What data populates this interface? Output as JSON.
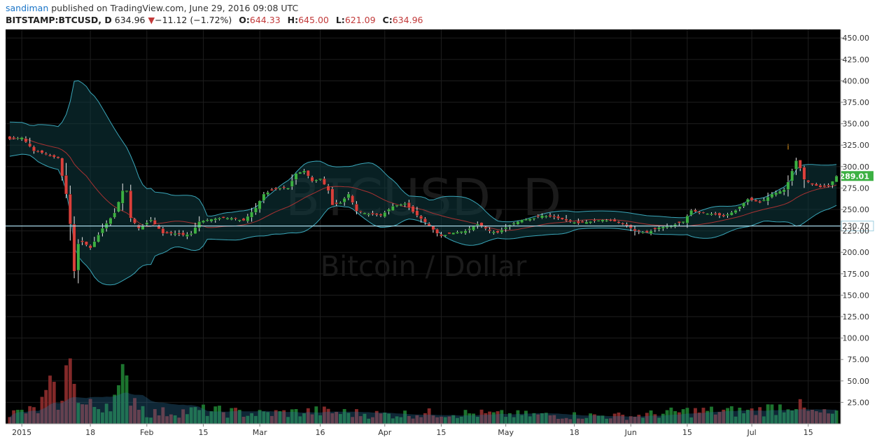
{
  "header": {
    "user": "sandiman",
    "published": "published on TradingView.com, June 29, 2016 09:08 UTC",
    "symbol": "BITSTAMP:BTCUSD, D",
    "last": "634.96",
    "change_arrow": "▼",
    "change": "−11.12 (−1.72%)",
    "o_label": "O:",
    "o_value": "644.33",
    "h_label": "H:",
    "h_value": "645.00",
    "l_label": "L:",
    "l_value": "621.09",
    "c_label": "C:",
    "c_value": "634.96"
  },
  "watermark": {
    "symbol": "BTCUSD, D",
    "name": "Bitcoin / Dollar"
  },
  "colors": {
    "bg": "#000000",
    "up": "#3cb043",
    "down": "#d9403b",
    "band": "#3aa6b9",
    "ma": "#a83232",
    "hline": "#a8d8e8",
    "last_label": "#3cb043",
    "hline_label": "#9fcfdf"
  },
  "chart_data": {
    "type": "candlestick",
    "price_axis": {
      "min": 0,
      "max": 460,
      "ticks": [
        450,
        425,
        400,
        375,
        350,
        325,
        300,
        275,
        250,
        225,
        200,
        175,
        150,
        125,
        100,
        75,
        50,
        25
      ],
      "tick_labels": [
        "450.00",
        "425.00",
        "400.00",
        "375.00",
        "350.00",
        "325.00",
        "300.00",
        "275.00",
        "250.00",
        "225.00",
        "200.00",
        "175.00",
        "150.00",
        "125.00",
        "100.00",
        "75.00",
        "50.00",
        "25.00"
      ]
    },
    "time_axis": {
      "start": "2014-12-29",
      "end": "2015-07-22",
      "labels": [
        {
          "date": "2015-01-01",
          "text": "2015"
        },
        {
          "date": "2015-01-18",
          "text": "18"
        },
        {
          "date": "2015-02-01",
          "text": "Feb"
        },
        {
          "date": "2015-02-15",
          "text": "15"
        },
        {
          "date": "2015-03-01",
          "text": "Mar"
        },
        {
          "date": "2015-03-16",
          "text": "16"
        },
        {
          "date": "2015-04-01",
          "text": "Apr"
        },
        {
          "date": "2015-04-15",
          "text": "15"
        },
        {
          "date": "2015-05-01",
          "text": "May"
        },
        {
          "date": "2015-05-18",
          "text": "18"
        },
        {
          "date": "2015-06-01",
          "text": "Jun"
        },
        {
          "date": "2015-06-15",
          "text": "15"
        },
        {
          "date": "2015-07-01",
          "text": "Jul"
        },
        {
          "date": "2015-07-15",
          "text": "15"
        }
      ]
    },
    "close_anchors": [
      [
        "2014-12-29",
        332
      ],
      [
        "2015-01-01",
        334
      ],
      [
        "2015-01-04",
        318
      ],
      [
        "2015-01-06",
        316
      ],
      [
        "2015-01-08",
        312
      ],
      [
        "2015-01-10",
        310
      ],
      [
        "2015-01-12",
        268
      ],
      [
        "2015-01-13",
        233
      ],
      [
        "2015-01-14",
        178
      ],
      [
        "2015-01-15",
        210
      ],
      [
        "2015-01-16",
        212
      ],
      [
        "2015-01-18",
        205
      ],
      [
        "2015-01-21",
        228
      ],
      [
        "2015-01-24",
        246
      ],
      [
        "2015-01-26",
        272
      ],
      [
        "2015-01-27",
        272
      ],
      [
        "2015-01-28",
        240
      ],
      [
        "2015-01-30",
        228
      ],
      [
        "2015-02-02",
        238
      ],
      [
        "2015-02-05",
        222
      ],
      [
        "2015-02-08",
        222
      ],
      [
        "2015-02-10",
        220
      ],
      [
        "2015-02-12",
        222
      ],
      [
        "2015-02-14",
        236
      ],
      [
        "2015-02-16",
        238
      ],
      [
        "2015-02-19",
        240
      ],
      [
        "2015-02-22",
        240
      ],
      [
        "2015-02-25",
        237
      ],
      [
        "2015-02-28",
        252
      ],
      [
        "2015-03-02",
        268
      ],
      [
        "2015-03-04",
        272
      ],
      [
        "2015-03-06",
        275
      ],
      [
        "2015-03-08",
        275
      ],
      [
        "2015-03-10",
        292
      ],
      [
        "2015-03-12",
        295
      ],
      [
        "2015-03-14",
        283
      ],
      [
        "2015-03-16",
        286
      ],
      [
        "2015-03-18",
        272
      ],
      [
        "2015-03-19",
        255
      ],
      [
        "2015-03-21",
        258
      ],
      [
        "2015-03-23",
        268
      ],
      [
        "2015-03-25",
        248
      ],
      [
        "2015-03-28",
        245
      ],
      [
        "2015-03-31",
        243
      ],
      [
        "2015-04-03",
        254
      ],
      [
        "2015-04-06",
        257
      ],
      [
        "2015-04-08",
        247
      ],
      [
        "2015-04-11",
        235
      ],
      [
        "2015-04-14",
        222
      ],
      [
        "2015-04-15",
        219
      ],
      [
        "2015-04-18",
        223
      ],
      [
        "2015-04-21",
        225
      ],
      [
        "2015-04-24",
        233
      ],
      [
        "2015-04-27",
        225
      ],
      [
        "2015-04-29",
        223
      ],
      [
        "2015-05-02",
        232
      ],
      [
        "2015-05-05",
        238
      ],
      [
        "2015-05-08",
        240
      ],
      [
        "2015-05-10",
        243
      ],
      [
        "2015-05-13",
        241
      ],
      [
        "2015-05-16",
        237
      ],
      [
        "2015-05-19",
        234
      ],
      [
        "2015-05-22",
        236
      ],
      [
        "2015-05-25",
        238
      ],
      [
        "2015-05-28",
        236
      ],
      [
        "2015-05-31",
        231
      ],
      [
        "2015-06-02",
        225
      ],
      [
        "2015-06-05",
        223
      ],
      [
        "2015-06-08",
        229
      ],
      [
        "2015-06-11",
        231
      ],
      [
        "2015-06-14",
        236
      ],
      [
        "2015-06-16",
        249
      ],
      [
        "2015-06-18",
        246
      ],
      [
        "2015-06-21",
        245
      ],
      [
        "2015-06-24",
        242
      ],
      [
        "2015-06-27",
        249
      ],
      [
        "2015-06-30",
        262
      ],
      [
        "2015-07-03",
        258
      ],
      [
        "2015-07-06",
        268
      ],
      [
        "2015-07-09",
        273
      ],
      [
        "2015-07-10",
        282
      ],
      [
        "2015-07-11",
        295
      ],
      [
        "2015-07-12",
        307
      ],
      [
        "2015-07-13",
        298
      ],
      [
        "2015-07-14",
        285
      ],
      [
        "2015-07-16",
        279
      ],
      [
        "2015-07-18",
        276
      ],
      [
        "2015-07-20",
        277
      ],
      [
        "2015-07-22",
        289.01
      ]
    ],
    "volume_anchors": [
      [
        "2014-12-29",
        13
      ],
      [
        "2015-01-05",
        18
      ],
      [
        "2015-01-08",
        44
      ],
      [
        "2015-01-11",
        24
      ],
      [
        "2015-01-12",
        61
      ],
      [
        "2015-01-13",
        118
      ],
      [
        "2015-01-14",
        80
      ],
      [
        "2015-01-15",
        25
      ],
      [
        "2015-01-20",
        22
      ],
      [
        "2015-01-25",
        38
      ],
      [
        "2015-01-26",
        55
      ],
      [
        "2015-02-01",
        14
      ],
      [
        "2015-02-15",
        17
      ],
      [
        "2015-03-01",
        13
      ],
      [
        "2015-03-15",
        16
      ],
      [
        "2015-04-01",
        12
      ],
      [
        "2015-04-15",
        14
      ],
      [
        "2015-05-01",
        12
      ],
      [
        "2015-05-15",
        11
      ],
      [
        "2015-06-01",
        10
      ],
      [
        "2015-06-15",
        16
      ],
      [
        "2015-07-01",
        16
      ],
      [
        "2015-07-08",
        22
      ],
      [
        "2015-07-11",
        28
      ],
      [
        "2015-07-15",
        15
      ],
      [
        "2015-07-22",
        12
      ]
    ],
    "bollinger": {
      "period": 20,
      "stddev": 2
    },
    "moving_average": {
      "period": 20
    },
    "horizontal_line": {
      "value": 230.7,
      "label": "230.70"
    },
    "last_price": {
      "value": 289.01,
      "label": "289.01"
    },
    "annotation": {
      "date": "2015-07-10",
      "price": 320,
      "text": "i"
    }
  }
}
